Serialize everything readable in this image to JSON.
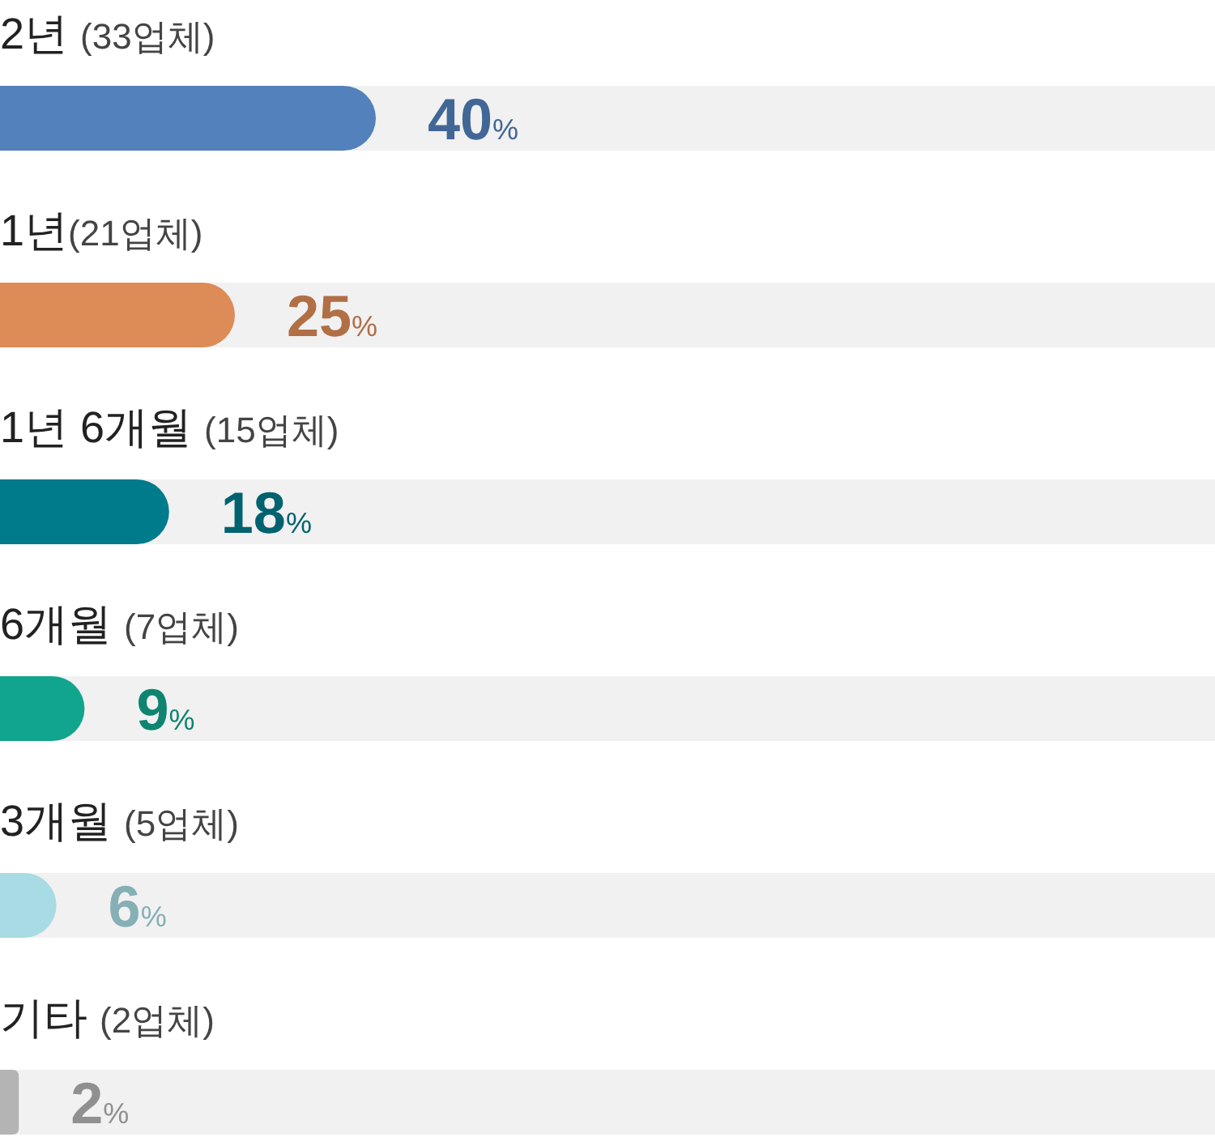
{
  "chart_data": {
    "type": "bar",
    "orientation": "horizontal",
    "categories": [
      "2년 (33업체)",
      "1년(21업체)",
      "1년 6개월 (15업체)",
      "6개월 (7업체)",
      "3개월 (5업체)",
      "기타 (2업체)"
    ],
    "values": [
      40,
      25,
      18,
      9,
      6,
      2
    ],
    "colors": [
      "#5281bb",
      "#dd8b57",
      "#007b8b",
      "#12a58d",
      "#a8dbe3",
      "#b4b4b4"
    ],
    "value_labels": [
      "40%",
      "25%",
      "18%",
      "9%",
      "6%",
      "2%"
    ]
  }
}
